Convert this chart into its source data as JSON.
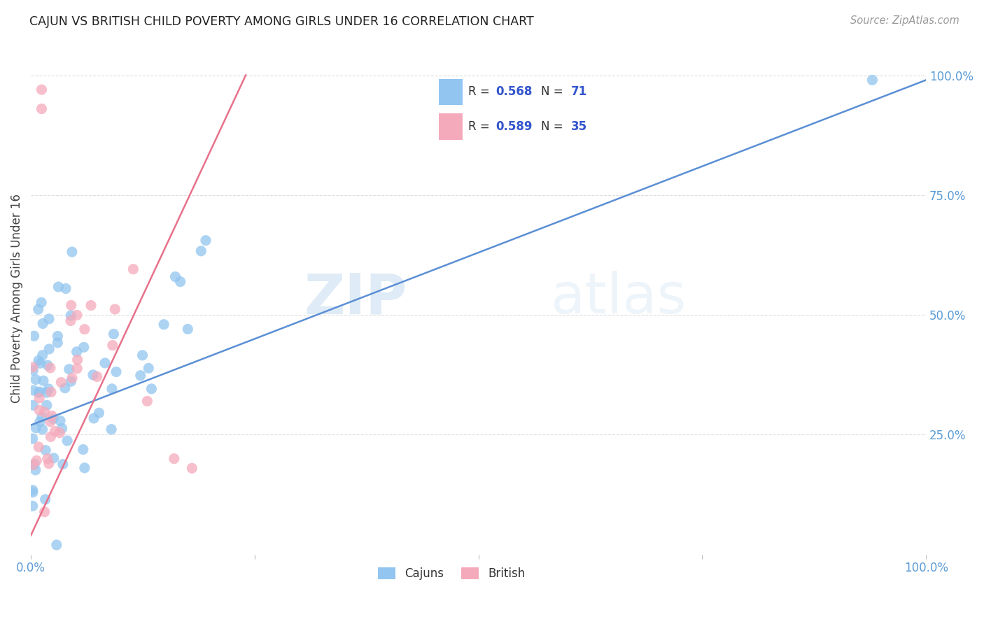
{
  "title": "CAJUN VS BRITISH CHILD POVERTY AMONG GIRLS UNDER 16 CORRELATION CHART",
  "source": "Source: ZipAtlas.com",
  "ylabel": "Child Poverty Among Girls Under 16",
  "cajuns_R": 0.568,
  "cajuns_N": 71,
  "british_R": 0.589,
  "british_N": 35,
  "cajuns_color": "#92C5F0",
  "british_color": "#F5AABB",
  "cajuns_line_color": "#5B8FD4",
  "british_line_color": "#E8708A",
  "legend_R_color": "#3355CC",
  "watermark_color": "#DCE9F7",
  "background_color": "#FFFFFF",
  "grid_color": "#DDDDDD",
  "tick_color": "#5B9BD5",
  "title_color": "#222222",
  "source_color": "#999999",
  "ylabel_color": "#444444",
  "legend_text_color": "#333333"
}
